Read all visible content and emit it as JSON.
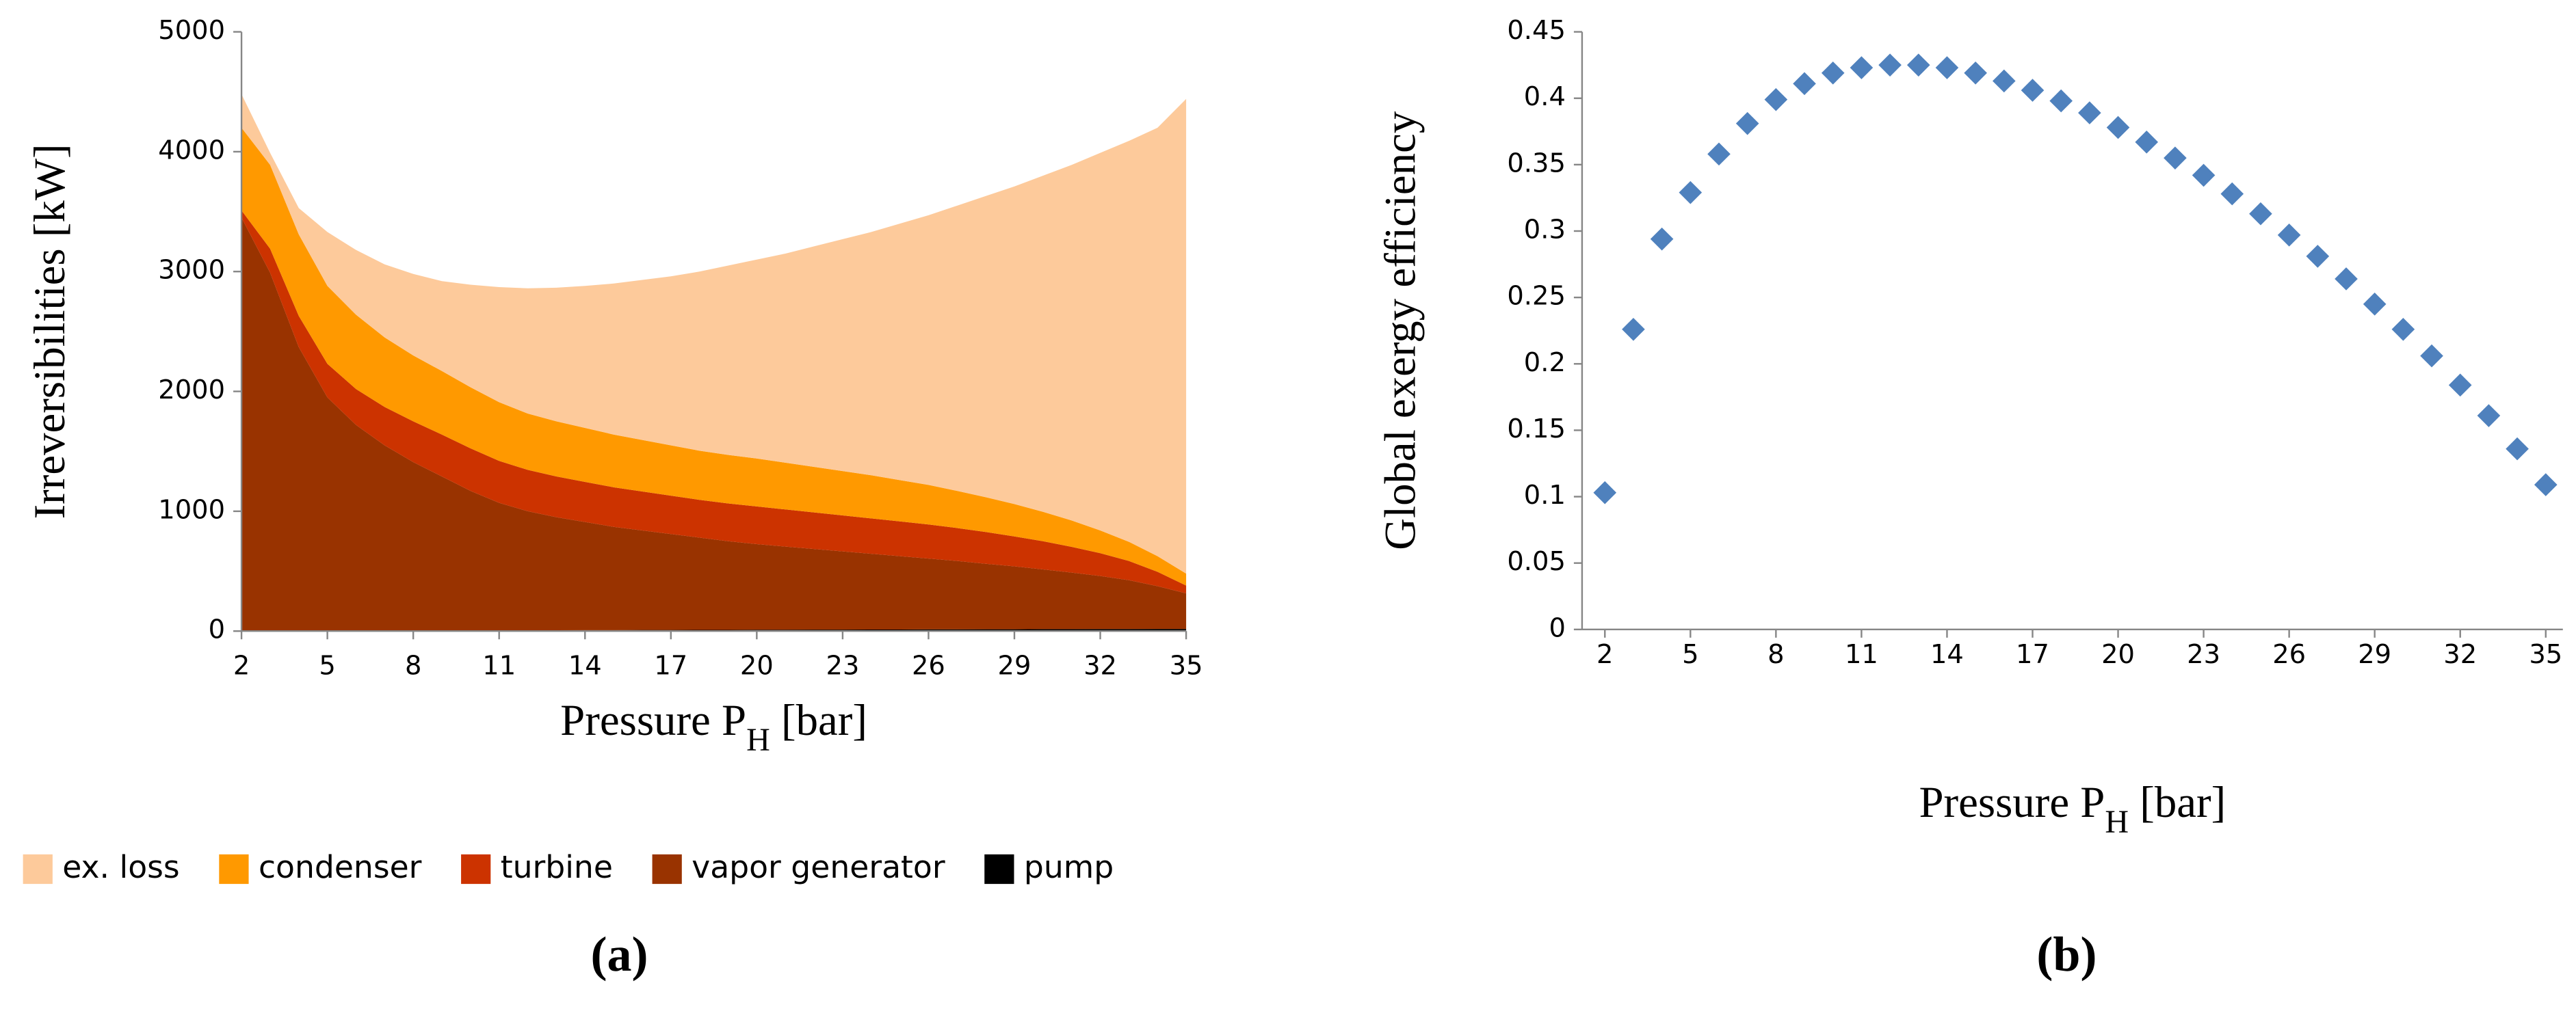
{
  "chart_data": [
    {
      "type": "area",
      "panel_label": "(a)",
      "y_label": "Irreversibilities [kW]",
      "x_label_parts": [
        "Pressure P",
        "H",
        " [bar]"
      ],
      "x": [
        2,
        3,
        4,
        5,
        6,
        7,
        8,
        9,
        10,
        11,
        12,
        13,
        14,
        15,
        16,
        17,
        18,
        19,
        20,
        21,
        22,
        23,
        24,
        25,
        26,
        27,
        28,
        29,
        30,
        31,
        32,
        33,
        34,
        35
      ],
      "xlim": [
        2,
        35
      ],
      "xticks": [
        2,
        5,
        8,
        11,
        14,
        17,
        20,
        23,
        26,
        29,
        32,
        35
      ],
      "ylim": [
        0,
        5000
      ],
      "yticks": [
        0,
        1000,
        2000,
        3000,
        4000,
        5000
      ],
      "legend": "bottom",
      "series": [
        {
          "name": "ex. loss",
          "color": "#fdca9b",
          "values": [
            280,
            100,
            220,
            450,
            540,
            610,
            680,
            750,
            855,
            960,
            1045,
            1115,
            1185,
            1260,
            1335,
            1410,
            1495,
            1580,
            1660,
            1745,
            1840,
            1935,
            2030,
            2140,
            2250,
            2380,
            2513,
            2650,
            2805,
            2967,
            3150,
            3345,
            3575,
            3960
          ]
        },
        {
          "name": "condenser",
          "color": "#ff9900",
          "values": [
            690,
            700,
            680,
            650,
            620,
            580,
            550,
            530,
            510,
            490,
            470,
            460,
            450,
            440,
            430,
            420,
            410,
            405,
            400,
            390,
            380,
            370,
            360,
            345,
            330,
            310,
            290,
            270,
            245,
            220,
            190,
            160,
            130,
            100
          ]
        },
        {
          "name": "turbine",
          "color": "#cc3300",
          "values": [
            60,
            200,
            260,
            280,
            300,
            320,
            340,
            350,
            355,
            350,
            345,
            340,
            335,
            330,
            325,
            320,
            315,
            315,
            314,
            310,
            305,
            300,
            295,
            290,
            285,
            275,
            265,
            250,
            235,
            215,
            190,
            160,
            120,
            65
          ]
        },
        {
          "name": "vapor generator",
          "color": "#993300",
          "values": [
            3448,
            2988,
            2367,
            1947,
            1716,
            1546,
            1405,
            1285,
            1164,
            1064,
            993,
            943,
            902,
            862,
            831,
            801,
            770,
            740,
            715,
            694,
            673,
            653,
            632,
            612,
            591,
            571,
            547,
            525,
            499,
            472,
            443,
            408,
            357,
            297
          ]
        },
        {
          "name": "pump",
          "color": "#000000",
          "values": [
            2,
            2,
            3,
            3,
            4,
            4,
            5,
            5,
            6,
            6,
            7,
            7,
            8,
            8,
            9,
            9,
            10,
            10,
            11,
            11,
            12,
            12,
            13,
            13,
            14,
            14,
            15,
            15,
            16,
            16,
            17,
            17,
            18,
            18
          ]
        }
      ]
    },
    {
      "type": "scatter",
      "panel_label": "(b)",
      "y_label": "Global exergy efficiency",
      "x_label_parts": [
        "Pressure P",
        "H",
        " [bar]"
      ],
      "x": [
        2,
        3,
        4,
        5,
        6,
        7,
        8,
        9,
        10,
        11,
        12,
        13,
        14,
        15,
        16,
        17,
        18,
        19,
        20,
        21,
        22,
        23,
        24,
        25,
        26,
        27,
        28,
        29,
        30,
        31,
        32,
        33,
        34,
        35
      ],
      "values": [
        0.103,
        0.226,
        0.294,
        0.329,
        0.358,
        0.381,
        0.399,
        0.411,
        0.419,
        0.423,
        0.425,
        0.425,
        0.423,
        0.419,
        0.413,
        0.406,
        0.398,
        0.389,
        0.378,
        0.367,
        0.355,
        0.342,
        0.328,
        0.313,
        0.297,
        0.281,
        0.264,
        0.245,
        0.226,
        0.206,
        0.184,
        0.161,
        0.136,
        0.109
      ],
      "color": "#4f81bd",
      "xlim": [
        1.2,
        35.6
      ],
      "xticks": [
        2,
        5,
        8,
        11,
        14,
        17,
        20,
        23,
        26,
        29,
        32,
        35
      ],
      "ylim": [
        0,
        0.45
      ],
      "yticks": [
        0,
        0.05,
        0.1,
        0.15,
        0.2,
        0.25,
        0.3,
        0.35,
        0.4,
        0.45
      ]
    }
  ]
}
